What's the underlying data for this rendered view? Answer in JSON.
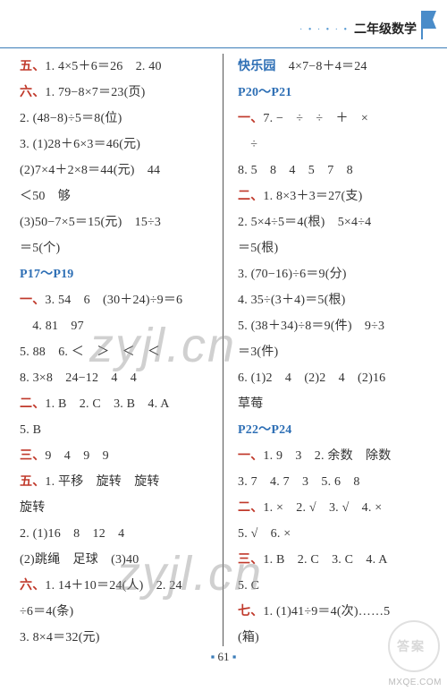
{
  "header": {
    "title": "二年级数学",
    "dots": "· • · • · •"
  },
  "col_left": [
    {
      "pre": "五、",
      "pre_color": "red",
      "text": "1. 4×5＋6＝26　2. 40"
    },
    {
      "pre": "六、",
      "pre_color": "red",
      "text": "1. 79−8×7＝23(页)"
    },
    {
      "pre": "",
      "text": "2. (48−8)÷5＝8(位)"
    },
    {
      "pre": "",
      "text": "3. (1)28＋6×3＝46(元)"
    },
    {
      "pre": "",
      "text": "(2)7×4＋2×8＝44(元)　44"
    },
    {
      "pre": "",
      "text": "＜50　够"
    },
    {
      "pre": "",
      "text": "(3)50−7×5＝15(元)　15÷3"
    },
    {
      "pre": "",
      "text": "＝5(个)"
    },
    {
      "pre": "P17～P19",
      "pre_color": "blue",
      "text": ""
    },
    {
      "pre": "一、",
      "pre_color": "red",
      "text": "3. 54　6　(30＋24)÷9＝6"
    },
    {
      "pre": "",
      "text": "　4. 81　97"
    },
    {
      "pre": "",
      "text": "5. 88　6. ＜　＞　＜　＜"
    },
    {
      "pre": "",
      "text": "8. 3×8　24−12　4　4"
    },
    {
      "pre": "二、",
      "pre_color": "red",
      "text": "1. B　2. C　3. B　4. A"
    },
    {
      "pre": "",
      "text": "5. B"
    },
    {
      "pre": "三、",
      "pre_color": "red",
      "text": "9　4　9　9"
    },
    {
      "pre": "五、",
      "pre_color": "red",
      "text": "1. 平移　旋转　旋转"
    },
    {
      "pre": "",
      "text": "旋转"
    },
    {
      "pre": "",
      "text": "2. (1)16　8　12　4"
    },
    {
      "pre": "",
      "text": "(2)跳绳　足球　(3)40"
    },
    {
      "pre": "六、",
      "pre_color": "red",
      "text": "1. 14＋10＝24(人)　2. 24"
    },
    {
      "pre": "",
      "text": "÷6＝4(条)"
    },
    {
      "pre": "",
      "text": "3. 8×4＝32(元)"
    }
  ],
  "col_right": [
    {
      "pre": "快乐园",
      "pre_color": "blue",
      "text": "　4×7−8＋4＝24"
    },
    {
      "pre": "P20～P21",
      "pre_color": "blue",
      "text": ""
    },
    {
      "pre": "一、",
      "pre_color": "red",
      "text": "7. −　÷　÷　＋　×"
    },
    {
      "pre": "",
      "text": "　÷"
    },
    {
      "pre": "",
      "text": "8. 5　8　4　5　7　8"
    },
    {
      "pre": "二、",
      "pre_color": "red",
      "text": "1. 8×3＋3＝27(支)"
    },
    {
      "pre": "",
      "text": "2. 5×4÷5＝4(根)　5×4÷4"
    },
    {
      "pre": "",
      "text": "＝5(根)"
    },
    {
      "pre": "",
      "text": "3. (70−16)÷6＝9(分)"
    },
    {
      "pre": "",
      "text": "4. 35÷(3＋4)＝5(根)"
    },
    {
      "pre": "",
      "text": "5. (38＋34)÷8＝9(件)　9÷3"
    },
    {
      "pre": "",
      "text": "＝3(件)"
    },
    {
      "pre": "",
      "text": "6. (1)2　4　(2)2　4　(2)16"
    },
    {
      "pre": "",
      "text": "草莓"
    },
    {
      "pre": "P22～P24",
      "pre_color": "blue",
      "text": ""
    },
    {
      "pre": "一、",
      "pre_color": "red",
      "text": "1. 9　3　2. 余数　除数"
    },
    {
      "pre": "",
      "text": "3. 7　4. 7　3　5. 6　8"
    },
    {
      "pre": "二、",
      "pre_color": "red",
      "text": "1. ×　2. √　3. √　4. ×"
    },
    {
      "pre": "",
      "text": "5. √　6. ×"
    },
    {
      "pre": "三、",
      "pre_color": "red",
      "text": "1. B　2. C　3. C　4. A"
    },
    {
      "pre": "",
      "text": "5. C"
    },
    {
      "pre": "七、",
      "pre_color": "red",
      "text": "1. (1)41÷9＝4(次)……5"
    },
    {
      "pre": "",
      "text": "(箱)"
    }
  ],
  "page": "61",
  "watermarks": [
    "zyjl.cn",
    "zyjl.cn"
  ],
  "stamp_text": "答案",
  "site": "MXQE.COM",
  "colors": {
    "red": "#c0392b",
    "blue": "#2e6fb5",
    "rule": "#3b7cb8",
    "text": "#333333",
    "bg": "#ffffff"
  }
}
